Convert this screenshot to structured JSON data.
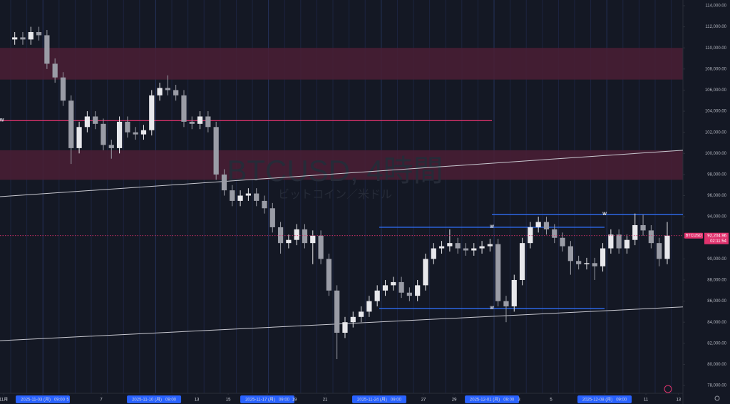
{
  "chart_data": {
    "type": "candlestick",
    "watermark": "BTCUSD, 4時間",
    "watermark_sub": "ビットコイン／米ドル",
    "up_color": "#e8e8ec",
    "down_color": "#9a9ca6",
    "open": [
      110800,
      111000,
      110800,
      111500,
      111200,
      108500,
      107200,
      105000,
      100500,
      102500,
      103500,
      102800,
      100800,
      100500,
      103000,
      102000,
      101800,
      102200,
      105500,
      106200,
      106000,
      105500,
      103000,
      102800,
      103500,
      102500,
      98000,
      96500,
      95500,
      96000,
      96200,
      95500,
      94800,
      93000,
      91500,
      91800,
      92800,
      91500,
      92200,
      90000,
      87000,
      83000,
      84000,
      84500,
      85000,
      86000,
      87000,
      87500,
      87800,
      86800,
      86500,
      87500,
      90000,
      91000,
      91200,
      91500,
      91000,
      90800,
      91000,
      91200,
      91400,
      86000,
      85500,
      88000,
      91500,
      93000,
      93500,
      92800,
      92000,
      91200,
      89800,
      89500,
      89600,
      89300,
      91000,
      92300,
      91000,
      91800,
      93200,
      92700,
      91500,
      90000
    ],
    "high": [
      111500,
      111500,
      112000,
      112000,
      111700,
      109000,
      107700,
      105500,
      103000,
      104000,
      104000,
      103300,
      101300,
      103500,
      103500,
      102500,
      102700,
      106000,
      106700,
      107400,
      106500,
      106000,
      103500,
      104000,
      104000,
      103000,
      98500,
      97000,
      96500,
      96700,
      96700,
      96000,
      95300,
      93500,
      92300,
      93300,
      93300,
      92700,
      92700,
      90500,
      87500,
      84500,
      85000,
      85500,
      86500,
      87500,
      88000,
      88300,
      88300,
      87300,
      88000,
      90500,
      91500,
      91700,
      92800,
      92000,
      91500,
      91500,
      91700,
      91900,
      91900,
      86500,
      88500,
      92000,
      93500,
      94000,
      94000,
      93300,
      92500,
      91700,
      90300,
      90100,
      90100,
      91500,
      92800,
      92800,
      92300,
      94300,
      94200,
      93200,
      92000,
      93500
    ],
    "low": [
      110300,
      110300,
      110300,
      110700,
      108000,
      106700,
      104500,
      99000,
      100000,
      102000,
      102300,
      100300,
      99500,
      100000,
      101500,
      101300,
      101300,
      101700,
      105000,
      105500,
      105000,
      102500,
      102300,
      102300,
      102000,
      97500,
      96000,
      95000,
      95000,
      95500,
      95000,
      94300,
      92500,
      90500,
      91000,
      91300,
      91000,
      89500,
      89500,
      86500,
      80500,
      82500,
      83500,
      84000,
      84500,
      85500,
      86500,
      87000,
      86300,
      86000,
      86000,
      87000,
      89500,
      90500,
      90700,
      90500,
      90300,
      90300,
      90500,
      90700,
      85500,
      84000,
      85000,
      87500,
      91000,
      92500,
      92300,
      91500,
      90700,
      88500,
      89000,
      89000,
      88000,
      88800,
      90500,
      90500,
      90500,
      91300,
      92200,
      91000,
      89300,
      89500
    ],
    "close": [
      111000,
      110800,
      111500,
      111200,
      108500,
      107200,
      105000,
      100500,
      102500,
      103500,
      102800,
      100800,
      100500,
      103000,
      102000,
      101800,
      102200,
      105500,
      106200,
      106000,
      105500,
      103000,
      102800,
      103500,
      102500,
      98000,
      96500,
      95500,
      96000,
      96200,
      95500,
      94800,
      93000,
      91500,
      91800,
      92800,
      91500,
      92200,
      90000,
      87000,
      83000,
      84000,
      84500,
      85000,
      86000,
      87000,
      87500,
      87800,
      86800,
      86500,
      87500,
      90000,
      91000,
      91200,
      91500,
      91000,
      90800,
      91000,
      91200,
      91400,
      86000,
      85500,
      88000,
      91500,
      93000,
      93500,
      92800,
      92000,
      91200,
      89800,
      89500,
      89600,
      89300,
      91000,
      92300,
      91000,
      91800,
      93200,
      92700,
      91500,
      90000,
      92204.96
    ],
    "ylim": [
      77260,
      114540
    ],
    "yticks": [
      {
        "value": 78000,
        "label": "78,000.00"
      },
      {
        "value": 80000,
        "label": "80,000.00"
      },
      {
        "value": 82000,
        "label": "82,000.00"
      },
      {
        "value": 84000,
        "label": "84,000.00"
      },
      {
        "value": 86000,
        "label": "86,000.00"
      },
      {
        "value": 88000,
        "label": "88,000.00"
      },
      {
        "value": 90000,
        "label": "90,000.00"
      },
      {
        "value": 92000,
        "label": "92,000.00"
      },
      {
        "value": 94000,
        "label": "94,000.00"
      },
      {
        "value": 96000,
        "label": "96,000.00"
      },
      {
        "value": 98000,
        "label": "98,000.00"
      },
      {
        "value": 100000,
        "label": "100,000.00"
      },
      {
        "value": 102000,
        "label": "102,000.00"
      },
      {
        "value": 104000,
        "label": "104,000.00"
      },
      {
        "value": 106000,
        "label": "106,000.00"
      },
      {
        "value": 108000,
        "label": "108,000.00"
      },
      {
        "value": 110000,
        "label": "110,000.00"
      },
      {
        "value": 112000,
        "label": "112,000.00"
      },
      {
        "value": 114000,
        "label": "114,000.00"
      }
    ],
    "xlim": [
      -1.83,
      82.95
    ],
    "xticks": [
      {
        "value": -1.38,
        "label": "11月"
      },
      {
        "value": 3.48,
        "label": "2025-11-03 (月)   09:00"
      },
      {
        "value": 6.58,
        "label": "5"
      },
      {
        "value": 10.74,
        "label": "7"
      },
      {
        "value": 17.29,
        "label": "2025-11-10 (月)   09:00"
      },
      {
        "value": 22.6,
        "label": "13"
      },
      {
        "value": 26.5,
        "label": "15"
      },
      {
        "value": 31.36,
        "label": "2025-11-17 (月)   09:00"
      },
      {
        "value": 34.72,
        "label": "19"
      },
      {
        "value": 38.53,
        "label": "21"
      },
      {
        "value": 45.25,
        "label": "2025-11-24 (月)   09:00"
      },
      {
        "value": 50.74,
        "label": "27"
      },
      {
        "value": 54.55,
        "label": "29"
      },
      {
        "value": 59.24,
        "label": "2025-12-01 (月)   09:00"
      },
      {
        "value": 62.6,
        "label": "3"
      },
      {
        "value": 66.58,
        "label": "5"
      },
      {
        "value": 73.22,
        "label": "2025-12-08 (月)   09:00"
      },
      {
        "value": 78.35,
        "label": "11"
      },
      {
        "value": 82.4,
        "label": "13"
      }
    ],
    "zones": [
      {
        "from": 107000,
        "to": 110000,
        "color": "#4a1f35"
      },
      {
        "from": 97500,
        "to": 100300,
        "color": "#4a1f35"
      }
    ],
    "hlines": [
      {
        "price": 103100,
        "start": -1.83,
        "end": 59.24,
        "color": "#e0336e",
        "tag": "W",
        "tag_at": -1.6
      },
      {
        "price": 93000,
        "start": 45.25,
        "end": 73.22,
        "color": "#2f6cf0",
        "tag": "W",
        "tag_at": 59.24
      },
      {
        "price": 94200,
        "start": 59.24,
        "end": 82.95,
        "color": "#2f6cf0",
        "tag": "W",
        "tag_at": 73.22
      },
      {
        "price": 85300,
        "start": 45.25,
        "end": 73.22,
        "color": "#2f6cf0",
        "tag": "W",
        "tag_at": 59.24
      }
    ],
    "trendlines": [
      {
        "x": [
          -1.83,
          82.95
        ],
        "y": [
          95900,
          100300
        ],
        "color": "#c8c8d0"
      },
      {
        "x": [
          -1.83,
          82.95
        ],
        "y": [
          82250,
          85450
        ],
        "color": "#c8c8d0"
      }
    ],
    "last_price": {
      "symbol": "BTCUSD",
      "value": 92204.96,
      "label": "92,204.96",
      "countdown": "02:11:54",
      "color": "#e0336e"
    }
  }
}
